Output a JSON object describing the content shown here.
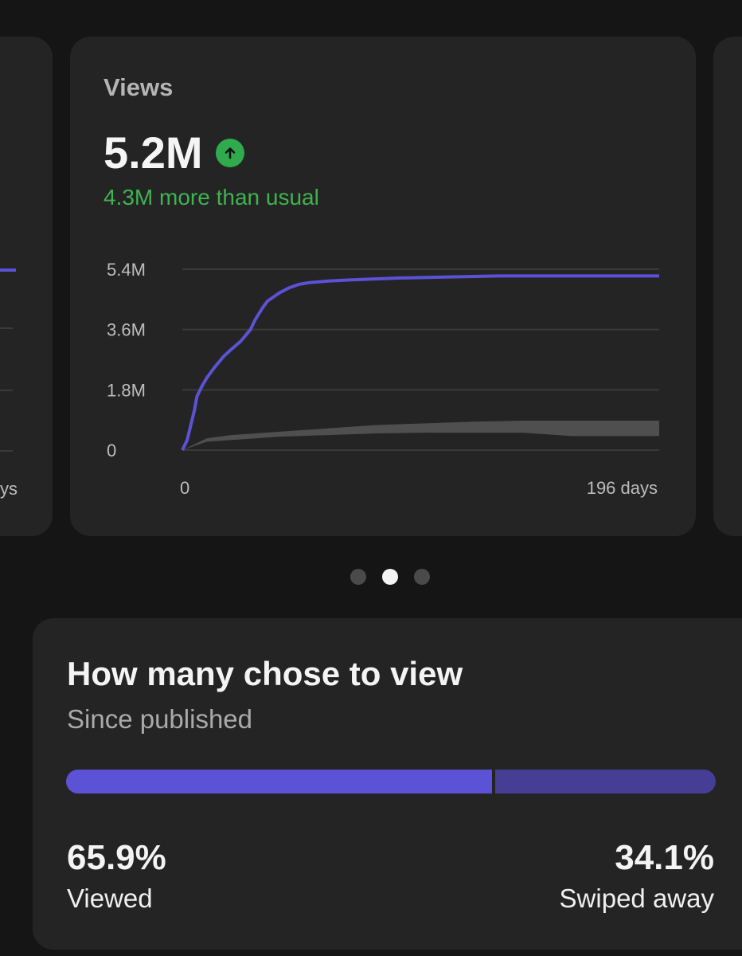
{
  "views_card": {
    "label": "Views",
    "value": "5.2M",
    "trend_icon": "arrow-up-icon",
    "delta_text": "4.3M more than usual",
    "colors": {
      "positive": "#3fb350",
      "series": "#5b52d6",
      "band": "#4f4f4f"
    }
  },
  "chart_data": {
    "type": "line",
    "y_ticks": [
      "5.4M",
      "3.6M",
      "1.8M",
      "0"
    ],
    "x_tick_start": "0",
    "x_tick_end": "196 days",
    "xlim": [
      0,
      196
    ],
    "ylim": [
      0,
      5.4
    ],
    "series": [
      {
        "x": [
          0,
          2,
          3,
          5,
          6,
          8,
          10,
          13,
          17,
          20,
          24,
          28,
          30,
          33,
          35,
          38,
          40,
          44,
          48,
          52,
          60,
          68,
          75,
          90,
          110,
          130,
          160,
          196
        ],
        "y": [
          0,
          0.3,
          0.6,
          1.2,
          1.6,
          1.9,
          2.15,
          2.45,
          2.8,
          3.0,
          3.25,
          3.6,
          3.9,
          4.25,
          4.45,
          4.6,
          4.7,
          4.85,
          4.95,
          5.0,
          5.05,
          5.08,
          5.1,
          5.14,
          5.17,
          5.2,
          5.2,
          5.2
        ]
      }
    ],
    "typical_range": {
      "x": [
        0,
        10,
        20,
        40,
        60,
        80,
        100,
        120,
        140,
        160,
        196
      ],
      "low": [
        0,
        0.25,
        0.3,
        0.4,
        0.45,
        0.5,
        0.52,
        0.52,
        0.52,
        0.42,
        0.42
      ],
      "high": [
        0,
        0.35,
        0.45,
        0.55,
        0.65,
        0.75,
        0.8,
        0.85,
        0.88,
        0.88,
        0.88
      ]
    }
  },
  "left_card": {
    "x_tick_end_partial": "ys"
  },
  "pagination": {
    "count": 3,
    "active_index": 1
  },
  "view_ratio": {
    "title": "How many chose to view",
    "subtitle": "Since published",
    "viewed_fraction": 0.659,
    "viewed_pct": "65.9%",
    "viewed_label": "Viewed",
    "swiped_pct": "34.1%",
    "swiped_label": "Swiped away"
  }
}
